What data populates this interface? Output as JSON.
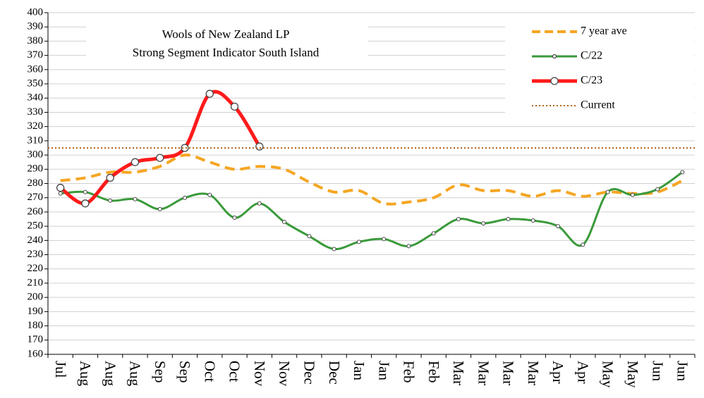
{
  "chart_data": {
    "type": "line",
    "title": [
      "Wools of New Zealand LP",
      "Strong Segment Indicator South Island"
    ],
    "categories": [
      "Jul",
      "Aug",
      "Aug",
      "Aug",
      "Sep",
      "Sep",
      "Oct",
      "Oct",
      "Nov",
      "Nov",
      "Dec",
      "Dec",
      "Jan",
      "Jan",
      "Feb",
      "Feb",
      "Mar",
      "Mar",
      "Mar",
      "Mar",
      "Apr",
      "Apr",
      "May",
      "May",
      "Jun",
      "Jun"
    ],
    "ylim": [
      160,
      400
    ],
    "yticks": [
      160,
      170,
      180,
      190,
      200,
      210,
      220,
      230,
      240,
      250,
      260,
      270,
      280,
      290,
      300,
      310,
      320,
      330,
      340,
      350,
      360,
      370,
      380,
      390,
      400
    ],
    "grid": true,
    "legend": "top-right",
    "series": [
      {
        "name": "7 year ave",
        "color": "#f5a623",
        "style": "dashed",
        "values": [
          282,
          284,
          288,
          288,
          292,
          300,
          295,
          290,
          292,
          290,
          281,
          274,
          275,
          266,
          267,
          270,
          279,
          275,
          275,
          271,
          275,
          271,
          274,
          273,
          274,
          282
        ]
      },
      {
        "name": "C/22",
        "color": "#3a9a3a",
        "style": "solid-small-markers",
        "values": [
          273,
          274,
          268,
          269,
          262,
          270,
          272,
          256,
          266,
          253,
          243,
          234,
          239,
          241,
          236,
          245,
          255,
          252,
          255,
          254,
          250,
          237,
          274,
          272,
          276,
          288
        ]
      },
      {
        "name": "C/23",
        "color": "#ff1a1a",
        "style": "solid-large-markers",
        "values": [
          277,
          266,
          284,
          295,
          298,
          305,
          343,
          334,
          306,
          null,
          null,
          null,
          null,
          null,
          null,
          null,
          null,
          null,
          null,
          null,
          null,
          null,
          null,
          null,
          null,
          null
        ]
      },
      {
        "name": "Current",
        "color": "#b5651d",
        "style": "dotted-hline",
        "value": 305
      }
    ]
  }
}
